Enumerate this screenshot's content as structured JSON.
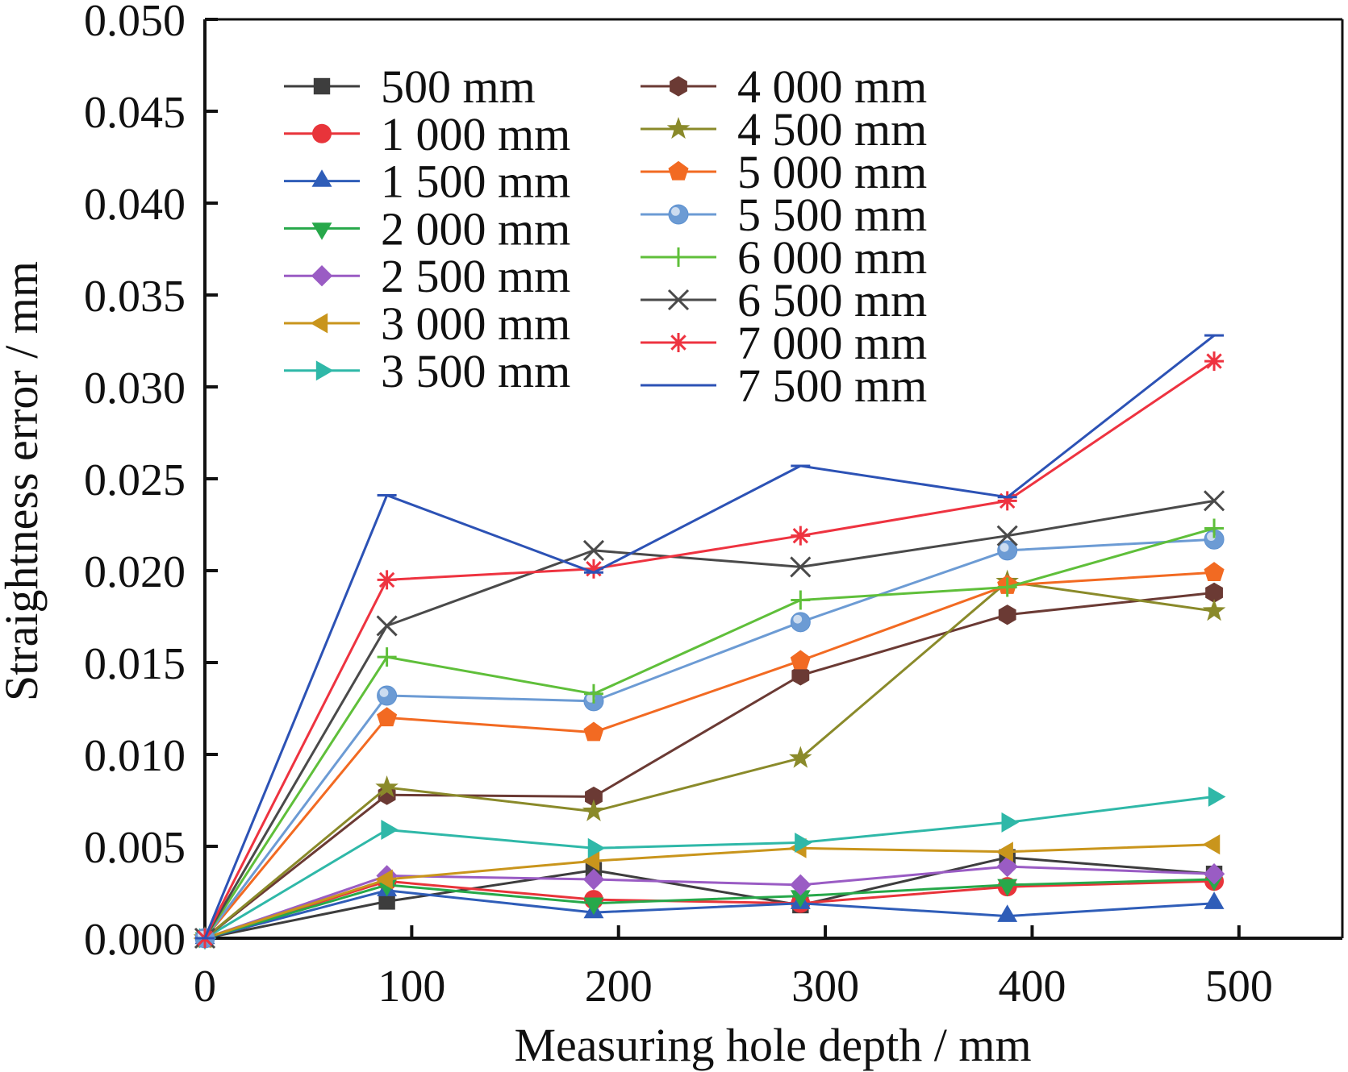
{
  "chart_data": {
    "type": "line",
    "xlabel": "Measuring hole depth / mm",
    "ylabel": "Straightness error / mm",
    "xlim": [
      0,
      550
    ],
    "ylim": [
      0,
      0.05
    ],
    "xticks": [
      0,
      100,
      200,
      300,
      400,
      500
    ],
    "xtick_labels": [
      "0",
      "100",
      "200",
      "300",
      "400",
      "500"
    ],
    "yticks": [
      0,
      0.005,
      0.01,
      0.015,
      0.02,
      0.025,
      0.03,
      0.035,
      0.04,
      0.045,
      0.05
    ],
    "ytick_labels": [
      "0.000",
      "0.005",
      "0.010",
      "0.015",
      "0.020",
      "0.025",
      "0.030",
      "0.035",
      "0.040",
      "0.045",
      "0.050"
    ],
    "legend_position": "top-left",
    "grid": false,
    "x": [
      0,
      88,
      188,
      288,
      388,
      488
    ],
    "series": [
      {
        "name": "500 mm",
        "color": "#3d3d3d",
        "marker": "square",
        "values": [
          0,
          0.002,
          0.0037,
          0.0018,
          0.0044,
          0.0035
        ]
      },
      {
        "name": "1 000 mm",
        "color": "#e8343a",
        "marker": "circle",
        "values": [
          0,
          0.0031,
          0.0021,
          0.0019,
          0.0028,
          0.0031
        ]
      },
      {
        "name": "1 500 mm",
        "color": "#2f5db8",
        "marker": "triangle-up",
        "values": [
          0,
          0.0026,
          0.0014,
          0.0019,
          0.0012,
          0.0019
        ]
      },
      {
        "name": "2 000 mm",
        "color": "#27a84a",
        "marker": "triangle-down",
        "values": [
          0,
          0.0029,
          0.0019,
          0.0023,
          0.0029,
          0.0032
        ]
      },
      {
        "name": "2 500 mm",
        "color": "#9a5cc4",
        "marker": "diamond",
        "values": [
          0,
          0.0034,
          0.0032,
          0.0029,
          0.0039,
          0.0035
        ]
      },
      {
        "name": "3 000 mm",
        "color": "#c9951c",
        "marker": "triangle-left",
        "values": [
          0,
          0.0032,
          0.0042,
          0.0049,
          0.0047,
          0.0051
        ]
      },
      {
        "name": "3 500 mm",
        "color": "#2fb8a8",
        "marker": "triangle-right",
        "values": [
          0,
          0.0059,
          0.0049,
          0.0052,
          0.0063,
          0.0077
        ]
      },
      {
        "name": "4 000 mm",
        "color": "#6b3a34",
        "marker": "hexagon",
        "values": [
          0,
          0.0078,
          0.0077,
          0.0143,
          0.0176,
          0.0188
        ]
      },
      {
        "name": "4 500 mm",
        "color": "#8a8a2a",
        "marker": "star",
        "values": [
          0,
          0.0082,
          0.0069,
          0.0098,
          0.0194,
          0.0178
        ]
      },
      {
        "name": "5 000 mm",
        "color": "#f26a22",
        "marker": "pentagon",
        "values": [
          0,
          0.012,
          0.0112,
          0.0151,
          0.0192,
          0.0199
        ]
      },
      {
        "name": "5 500 mm",
        "color": "#6c9bd4",
        "marker": "sphere",
        "values": [
          0,
          0.0132,
          0.0129,
          0.0172,
          0.0211,
          0.0217
        ]
      },
      {
        "name": "6 000 mm",
        "color": "#5fbf3a",
        "marker": "plus",
        "values": [
          0,
          0.0153,
          0.0133,
          0.0184,
          0.0191,
          0.0223
        ]
      },
      {
        "name": "6 500 mm",
        "color": "#4a4a4a",
        "marker": "x",
        "values": [
          0,
          0.017,
          0.0211,
          0.0202,
          0.0219,
          0.0238
        ]
      },
      {
        "name": "7 000 mm",
        "color": "#ee3340",
        "marker": "asterisk",
        "values": [
          0,
          0.0195,
          0.0201,
          0.0219,
          0.0238,
          0.0314
        ]
      },
      {
        "name": "7 500 mm",
        "color": "#2c52b5",
        "marker": "dash",
        "values": [
          0,
          0.0241,
          0.0199,
          0.0257,
          0.024,
          0.0328
        ]
      }
    ]
  }
}
